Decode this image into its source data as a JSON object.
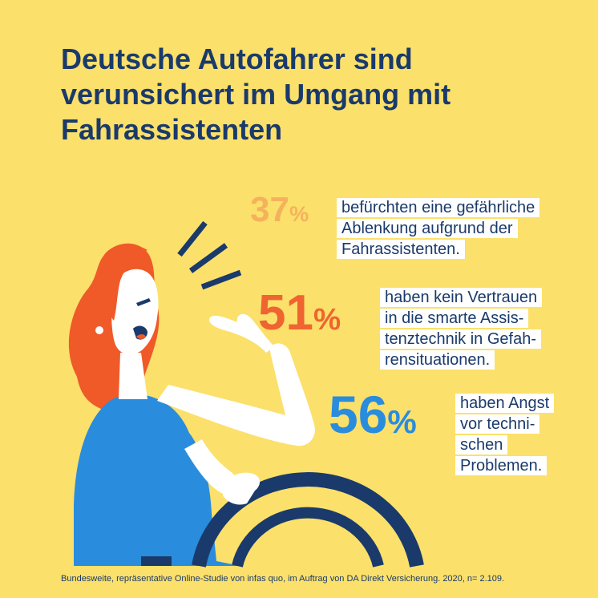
{
  "colors": {
    "background": "#fbe06b",
    "title": "#1a3a6b",
    "stat_1": "#f5b25c",
    "stat_2": "#ef6430",
    "stat_3": "#2a8cdc",
    "hair": "#ef5a28",
    "shirt": "#2a8cdc",
    "wheel": "#1a3a6b"
  },
  "title": "Deutsche Autofahrer sind verunsichert im Umgang mit Fahrassistenten",
  "stats": [
    {
      "value": "37",
      "symbol": "%",
      "lines": [
        "befürchten eine gefährliche",
        "Ablenkung aufgrund der",
        "Fahrassistenten."
      ]
    },
    {
      "value": "51",
      "symbol": "%",
      "lines": [
        "haben kein Vertrauen",
        "in die smarte Assis-",
        "tenztechnik in Gefah-",
        "rensituationen."
      ]
    },
    {
      "value": "56",
      "symbol": "%",
      "lines": [
        "haben Angst",
        "vor techni-",
        "schen",
        "Problemen."
      ]
    }
  ],
  "illustration": {
    "icons": [
      "woman-driver-icon",
      "steering-wheel-icon",
      "alarm-lines-icon"
    ]
  },
  "footnote": "Bundesweite, repräsentative Online-Studie von infas quo, im Auftrag von DA Direkt Versicherung. 2020, n= 2.109."
}
